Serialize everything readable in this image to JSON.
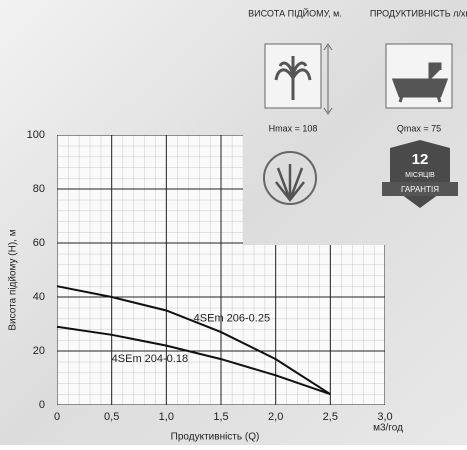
{
  "chart_data": {
    "type": "line",
    "x": [
      0,
      0.5,
      1.0,
      1.5,
      2.0,
      2.5
    ],
    "series": [
      {
        "name": "4SEm 206-0.25",
        "color": "#111111",
        "values": [
          44,
          40,
          35,
          27,
          17,
          4
        ]
      },
      {
        "name": "4SEm 204-0.18",
        "color": "#111111",
        "values": [
          29,
          26,
          22,
          17,
          11,
          4
        ]
      }
    ],
    "xlim": [
      0,
      3.0
    ],
    "ylim": [
      0,
      100
    ],
    "xticks": [
      0,
      {
        "value": 0.5,
        "label": "0,5"
      },
      {
        "value": 1.0,
        "label": "1,0"
      },
      {
        "value": 1.5,
        "label": "1,5"
      },
      {
        "value": 2.0,
        "label": "2,0"
      },
      {
        "value": 2.5,
        "label": "2,5"
      },
      {
        "value": 3.0,
        "label": "3,0"
      }
    ],
    "yticks": [
      0,
      20,
      40,
      60,
      80,
      100
    ],
    "x_label": "Продуктивність (Q)",
    "x_unit": "м3/год",
    "y_label": "Висота підйому (H), м",
    "grid": true
  },
  "badges": {
    "height": {
      "title": "ВИСОТА ПІДЙОМУ, м.",
      "value": "Hmax = 108"
    },
    "flow": {
      "title": "ПРОДУКТИВНІСТЬ л/хв",
      "value": "Qmax = 75"
    },
    "warranty": {
      "number": "12",
      "unit": "МІСЯЦІВ",
      "label": "ГАРАНТІЯ"
    }
  }
}
